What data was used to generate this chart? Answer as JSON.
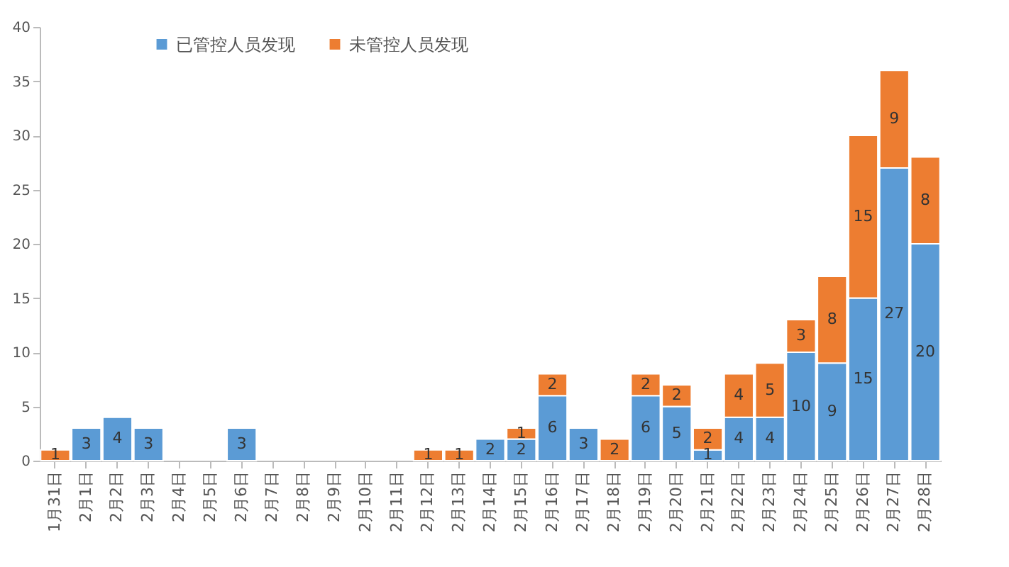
{
  "chart_data": {
    "type": "bar",
    "stacked": true,
    "data_labels": true,
    "legend": "top",
    "grid": false,
    "categories": [
      "1月31日",
      "2月1日",
      "2月2日",
      "2月3日",
      "2月4日",
      "2月5日",
      "2月6日",
      "2月7日",
      "2月8日",
      "2月9日",
      "2月10日",
      "2月11日",
      "2月12日",
      "2月13日",
      "2月14日",
      "2月15日",
      "2月16日",
      "2月17日",
      "2月18日",
      "2月19日",
      "2月20日",
      "2月21日",
      "2月22日",
      "2月23日",
      "2月24日",
      "2月25日",
      "2月26日",
      "2月27日",
      "2月28日"
    ],
    "series": [
      {
        "name": "已管控人员发现",
        "color": "#5b9bd5",
        "values": [
          null,
          3,
          4,
          3,
          null,
          null,
          3,
          null,
          null,
          null,
          null,
          null,
          null,
          null,
          2,
          2,
          6,
          3,
          null,
          6,
          5,
          1,
          4,
          4,
          10,
          9,
          15,
          27,
          20
        ]
      },
      {
        "name": "未管控人员发现",
        "color": "#ed7d31",
        "values": [
          1,
          null,
          null,
          null,
          null,
          null,
          null,
          null,
          null,
          null,
          null,
          null,
          1,
          1,
          null,
          1,
          2,
          null,
          2,
          2,
          2,
          2,
          4,
          5,
          3,
          8,
          15,
          9,
          8
        ]
      }
    ],
    "ylim": [
      0,
      40
    ],
    "yticks": [
      0,
      5,
      10,
      15,
      20,
      25,
      30,
      35,
      40
    ]
  }
}
